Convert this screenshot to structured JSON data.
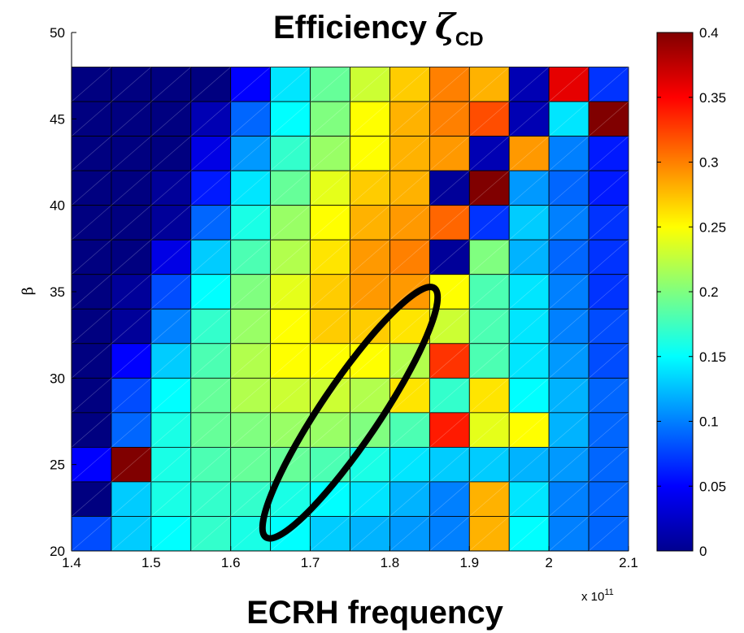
{
  "chart_data": {
    "type": "heatmap",
    "title": "Efficiency",
    "title_symbol": "ζ",
    "title_subscript": "CD",
    "xlabel": "ECRH frequency",
    "ylabel": "β",
    "x_multiplier_base": "x 10",
    "x_multiplier_exponent": "11",
    "xlim": [
      1.4,
      2.1
    ],
    "ylim": [
      20,
      50
    ],
    "x_ticks": [
      "1.4",
      "1.5",
      "1.6",
      "1.7",
      "1.8",
      "1.9",
      "2",
      "2.1"
    ],
    "y_ticks": [
      "20",
      "25",
      "30",
      "35",
      "40",
      "45",
      "50"
    ],
    "colorbar_ticks": [
      "0",
      "0.05",
      "0.1",
      "0.15",
      "0.2",
      "0.25",
      "0.3",
      "0.35",
      "0.4"
    ],
    "colorbar_range": [
      0,
      0.4
    ],
    "colormap": "jet",
    "grid_x_range": [
      1.4,
      2.1
    ],
    "grid_y_range": [
      20,
      48
    ],
    "rows_top_to_bottom": [
      [
        0.0,
        0.0,
        0.0,
        0.0,
        0.05,
        0.14,
        0.19,
        0.23,
        0.27,
        0.3,
        0.28,
        0.02,
        0.36,
        0.07
      ],
      [
        0.0,
        0.0,
        0.0,
        0.02,
        0.09,
        0.15,
        0.2,
        0.25,
        0.28,
        0.3,
        0.32,
        0.02,
        0.14,
        0.4
      ],
      [
        0.0,
        0.0,
        0.0,
        0.04,
        0.11,
        0.17,
        0.21,
        0.25,
        0.28,
        0.29,
        0.02,
        0.29,
        0.1,
        0.06
      ],
      [
        0.0,
        0.0,
        0.01,
        0.06,
        0.14,
        0.19,
        0.24,
        0.27,
        0.28,
        0.01,
        0.4,
        0.11,
        0.09,
        0.06
      ],
      [
        0.0,
        0.0,
        0.01,
        0.09,
        0.16,
        0.21,
        0.25,
        0.28,
        0.29,
        0.31,
        0.07,
        0.13,
        0.1,
        0.07
      ],
      [
        0.0,
        0.0,
        0.04,
        0.13,
        0.18,
        0.22,
        0.26,
        0.29,
        0.3,
        0.01,
        0.2,
        0.12,
        0.09,
        0.07
      ],
      [
        0.0,
        0.01,
        0.08,
        0.15,
        0.2,
        0.24,
        0.27,
        0.29,
        0.29,
        0.25,
        0.18,
        0.14,
        0.1,
        0.07
      ],
      [
        0.0,
        0.01,
        0.1,
        0.17,
        0.21,
        0.25,
        0.27,
        0.27,
        0.26,
        0.23,
        0.18,
        0.14,
        0.1,
        0.08
      ],
      [
        0.0,
        0.05,
        0.13,
        0.18,
        0.22,
        0.25,
        0.25,
        0.25,
        0.22,
        0.33,
        0.18,
        0.14,
        0.11,
        0.08
      ],
      [
        0.0,
        0.08,
        0.15,
        0.19,
        0.22,
        0.23,
        0.23,
        0.22,
        0.26,
        0.17,
        0.26,
        0.15,
        0.12,
        0.09
      ],
      [
        0.0,
        0.09,
        0.16,
        0.19,
        0.2,
        0.21,
        0.21,
        0.2,
        0.18,
        0.34,
        0.24,
        0.25,
        0.12,
        0.09
      ],
      [
        0.05,
        0.4,
        0.16,
        0.18,
        0.19,
        0.19,
        0.18,
        0.16,
        0.14,
        0.13,
        0.13,
        0.12,
        0.11,
        0.09
      ],
      [
        0.0,
        0.13,
        0.16,
        0.17,
        0.17,
        0.16,
        0.15,
        0.14,
        0.12,
        0.1,
        0.28,
        0.14,
        0.1,
        0.09
      ],
      [
        0.08,
        0.13,
        0.15,
        0.17,
        0.16,
        0.15,
        0.13,
        0.12,
        0.11,
        0.1,
        0.28,
        0.15,
        0.1,
        0.09
      ]
    ],
    "annotation": {
      "shape": "ellipse",
      "center": [
        1.75,
        28.0
      ],
      "rx": 1.0,
      "ry": 0.17,
      "angle_deg": -56
    }
  }
}
